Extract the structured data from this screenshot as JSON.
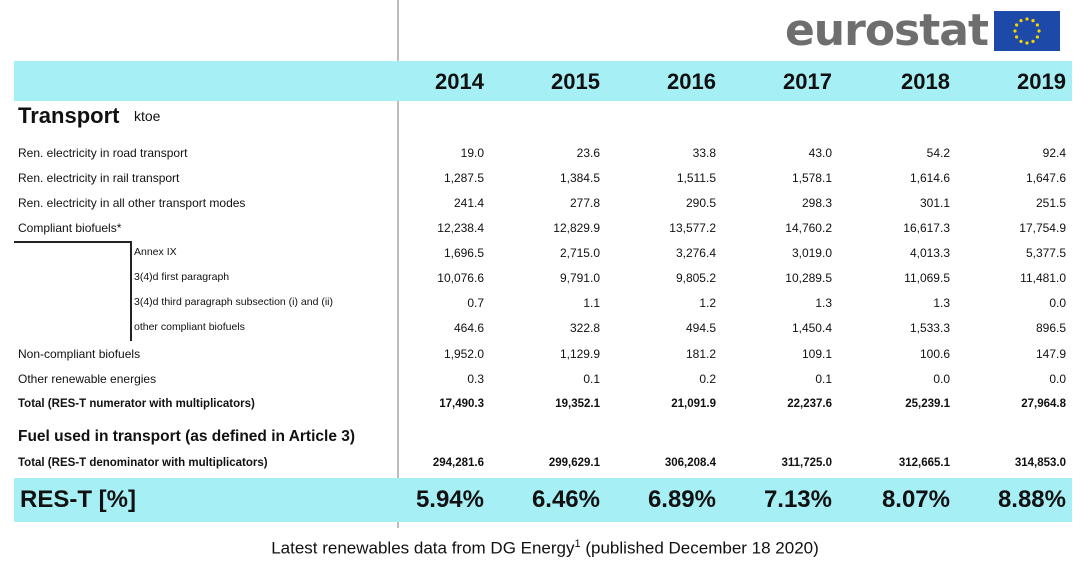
{
  "logo": {
    "text": "eurostat",
    "flag_color": "#1d49a8",
    "star_color": "#f6d200"
  },
  "header_color": "#a5eff5",
  "years": [
    "2014",
    "2015",
    "2016",
    "2017",
    "2018",
    "2019"
  ],
  "section": {
    "title": "Transport",
    "unit": "ktoe"
  },
  "rows": [
    {
      "label": "Ren. electricity in road transport",
      "values": [
        "19.0",
        "23.6",
        "33.8",
        "43.0",
        "54.2",
        "92.4"
      ]
    },
    {
      "label": "Ren. electricity in rail transport",
      "values": [
        "1,287.5",
        "1,384.5",
        "1,511.5",
        "1,578.1",
        "1,614.6",
        "1,647.6"
      ]
    },
    {
      "label": "Ren. electricity in all other transport modes",
      "values": [
        "241.4",
        "277.8",
        "290.5",
        "298.3",
        "301.1",
        "251.5"
      ]
    },
    {
      "label": "Compliant biofuels*",
      "values": [
        "12,238.4",
        "12,829.9",
        "13,577.2",
        "14,760.2",
        "16,617.3",
        "17,754.9"
      ]
    },
    {
      "label": "Annex IX",
      "values": [
        "1,696.5",
        "2,715.0",
        "3,276.4",
        "3,019.0",
        "4,013.3",
        "5,377.5"
      ]
    },
    {
      "label": "3(4)d first paragraph",
      "values": [
        "10,076.6",
        "9,791.0",
        "9,805.2",
        "10,289.5",
        "11,069.5",
        "11,481.0"
      ]
    },
    {
      "label": "3(4)d third paragraph subsection (i) and (ii)",
      "values": [
        "0.7",
        "1.1",
        "1.2",
        "1.3",
        "1.3",
        "0.0"
      ]
    },
    {
      "label": "other compliant biofuels",
      "values": [
        "464.6",
        "322.8",
        "494.5",
        "1,450.4",
        "1,533.3",
        "896.5"
      ]
    },
    {
      "label": "Non-compliant biofuels",
      "values": [
        "1,952.0",
        "1,129.9",
        "181.2",
        "109.1",
        "100.6",
        "147.9"
      ]
    },
    {
      "label": "Other renewable energies",
      "values": [
        "0.3",
        "0.1",
        "0.2",
        "0.1",
        "0.0",
        "0.0"
      ]
    },
    {
      "label": "Total (RES-T numerator with multiplicators)",
      "values": [
        "17,490.3",
        "19,352.1",
        "21,091.9",
        "22,237.6",
        "25,239.1",
        "27,964.8"
      ]
    }
  ],
  "fuel_section_title": "Fuel used in transport (as defined in Article 3)",
  "denominator": {
    "label": "Total (RES-T denominator with multiplicators)",
    "values": [
      "294,281.6",
      "299,629.1",
      "306,208.4",
      "311,725.0",
      "312,665.1",
      "314,853.0"
    ]
  },
  "res_t": {
    "label": "RES-T [%]",
    "values": [
      "5.94%",
      "6.46%",
      "6.89%",
      "7.13%",
      "8.07%",
      "8.88%"
    ]
  },
  "caption": {
    "text": "Latest renewables data from DG Energy",
    "superscript": "1",
    "suffix": " (published December 18 2020)"
  }
}
